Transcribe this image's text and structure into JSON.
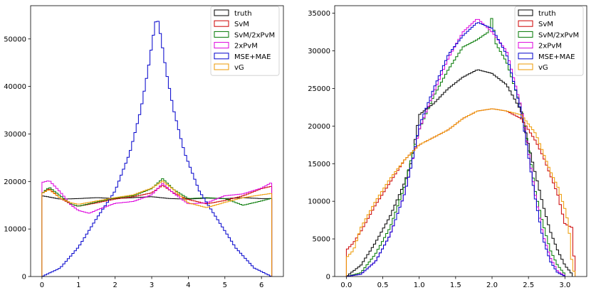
{
  "chart_data": [
    {
      "type": "histogram",
      "xlim": [
        -0.31,
        6.6
      ],
      "ylim": [
        0,
        57000
      ],
      "xticks": [
        0,
        1,
        2,
        3,
        4,
        5,
        6
      ],
      "yticks": [
        0,
        10000,
        20000,
        30000,
        40000,
        50000
      ],
      "grid": false,
      "legend_position": "top-right",
      "series": [
        {
          "name": "truth",
          "color": "#000000",
          "points": [
            [
              0,
              17000
            ],
            [
              0.5,
              16300
            ],
            [
              1,
              16400
            ],
            [
              1.5,
              16600
            ],
            [
              2,
              16400
            ],
            [
              2.5,
              16600
            ],
            [
              3,
              16800
            ],
            [
              3.5,
              16400
            ],
            [
              4,
              16300
            ],
            [
              4.5,
              16500
            ],
            [
              5,
              16400
            ],
            [
              5.5,
              16600
            ],
            [
              6,
              16400
            ],
            [
              6.28,
              16400
            ]
          ]
        },
        {
          "name": "SvM",
          "color": "#cc0000",
          "points": [
            [
              0,
              17500
            ],
            [
              0.2,
              18500
            ],
            [
              0.5,
              16500
            ],
            [
              0.8,
              15200
            ],
            [
              1,
              14800
            ],
            [
              1.5,
              15500
            ],
            [
              2,
              16300
            ],
            [
              2.5,
              16800
            ],
            [
              3,
              17600
            ],
            [
              3.3,
              19200
            ],
            [
              3.6,
              17600
            ],
            [
              4,
              16200
            ],
            [
              4.5,
              15300
            ],
            [
              5,
              16000
            ],
            [
              5.5,
              17000
            ],
            [
              6,
              18500
            ],
            [
              6.28,
              19000
            ]
          ]
        },
        {
          "name": "SvM/2xPvM",
          "color": "#007700",
          "points": [
            [
              0,
              17500
            ],
            [
              0.2,
              18800
            ],
            [
              0.5,
              17000
            ],
            [
              0.8,
              15200
            ],
            [
              1,
              14800
            ],
            [
              1.5,
              15700
            ],
            [
              2,
              16500
            ],
            [
              2.5,
              17000
            ],
            [
              3,
              18500
            ],
            [
              3.3,
              20600
            ],
            [
              3.6,
              18300
            ],
            [
              4,
              16400
            ],
            [
              4.5,
              16600
            ],
            [
              5,
              16400
            ],
            [
              5.5,
              15000
            ],
            [
              6,
              15900
            ],
            [
              6.28,
              16500
            ]
          ]
        },
        {
          "name": "2xPvM",
          "color": "#dd00dd",
          "points": [
            [
              0,
              19800
            ],
            [
              0.2,
              20200
            ],
            [
              0.5,
              17800
            ],
            [
              0.8,
              15000
            ],
            [
              1,
              13900
            ],
            [
              1.3,
              13300
            ],
            [
              1.5,
              14000
            ],
            [
              2,
              15400
            ],
            [
              2.5,
              15800
            ],
            [
              3,
              17200
            ],
            [
              3.3,
              19600
            ],
            [
              3.6,
              17500
            ],
            [
              4,
              15300
            ],
            [
              4.5,
              15500
            ],
            [
              5,
              17000
            ],
            [
              5.5,
              17400
            ],
            [
              6,
              18600
            ],
            [
              6.28,
              19800
            ]
          ]
        },
        {
          "name": "MSE+MAE",
          "color": "#0000cc",
          "points": [
            [
              0,
              0
            ],
            [
              0.5,
              1800
            ],
            [
              1,
              6200
            ],
            [
              1.5,
              12300
            ],
            [
              2,
              18000
            ],
            [
              2.4,
              26000
            ],
            [
              2.7,
              35000
            ],
            [
              2.9,
              43500
            ],
            [
              3.05,
              51000
            ],
            [
              3.14,
              55000
            ],
            [
              3.25,
              50500
            ],
            [
              3.4,
              43000
            ],
            [
              3.6,
              35000
            ],
            [
              3.9,
              26000
            ],
            [
              4.3,
              18000
            ],
            [
              4.8,
              12000
            ],
            [
              5.3,
              6000
            ],
            [
              5.8,
              1800
            ],
            [
              6.28,
              0
            ]
          ]
        },
        {
          "name": "vG",
          "color": "#ee9900",
          "points": [
            [
              0,
              17500
            ],
            [
              0.2,
              18300
            ],
            [
              0.5,
              16500
            ],
            [
              0.8,
              15500
            ],
            [
              1,
              15200
            ],
            [
              1.5,
              15900
            ],
            [
              2,
              16600
            ],
            [
              2.5,
              17200
            ],
            [
              3,
              18600
            ],
            [
              3.3,
              20100
            ],
            [
              3.6,
              18300
            ],
            [
              4,
              15500
            ],
            [
              4.5,
              14500
            ],
            [
              5,
              15600
            ],
            [
              5.5,
              16600
            ],
            [
              6,
              17200
            ],
            [
              6.28,
              17500
            ]
          ]
        }
      ]
    },
    {
      "type": "histogram",
      "xlim": [
        -0.16,
        3.3
      ],
      "ylim": [
        0,
        36000
      ],
      "xticks": [
        0.0,
        0.5,
        1.0,
        1.5,
        2.0,
        2.5,
        3.0
      ],
      "yticks": [
        0,
        5000,
        10000,
        15000,
        20000,
        25000,
        30000,
        35000
      ],
      "grid": false,
      "legend_position": "top-right",
      "series": [
        {
          "name": "truth",
          "color": "#000000",
          "points": [
            [
              0,
              0
            ],
            [
              0.2,
              1500
            ],
            [
              0.4,
              4500
            ],
            [
              0.6,
              8000
            ],
            [
              0.8,
              12500
            ],
            [
              0.9,
              15500
            ],
            [
              1.0,
              21500
            ],
            [
              1.2,
              23000
            ],
            [
              1.4,
              25000
            ],
            [
              1.6,
              26500
            ],
            [
              1.8,
              27500
            ],
            [
              2.0,
              27000
            ],
            [
              2.2,
              25500
            ],
            [
              2.4,
              22000
            ],
            [
              2.5,
              17500
            ],
            [
              2.6,
              13500
            ],
            [
              2.7,
              9500
            ],
            [
              2.8,
              6000
            ],
            [
              2.9,
              3500
            ],
            [
              3.0,
              1500
            ],
            [
              3.1,
              300
            ]
          ]
        },
        {
          "name": "SvM",
          "color": "#cc0000",
          "points": [
            [
              0,
              3500
            ],
            [
              0.1,
              4500
            ],
            [
              0.2,
              6000
            ],
            [
              0.4,
              9500
            ],
            [
              0.6,
              12500
            ],
            [
              0.8,
              15500
            ],
            [
              1.0,
              17500
            ],
            [
              1.2,
              18500
            ],
            [
              1.4,
              19500
            ],
            [
              1.6,
              21000
            ],
            [
              1.8,
              22000
            ],
            [
              2.0,
              22300
            ],
            [
              2.2,
              22000
            ],
            [
              2.4,
              21000
            ],
            [
              2.6,
              18000
            ],
            [
              2.7,
              16000
            ],
            [
              2.8,
              13500
            ],
            [
              2.9,
              11000
            ],
            [
              3.0,
              7000
            ],
            [
              3.1,
              6500
            ],
            [
              3.14,
              300
            ]
          ]
        },
        {
          "name": "SvM/2xPvM",
          "color": "#007700",
          "points": [
            [
              0,
              0
            ],
            [
              0.2,
              500
            ],
            [
              0.4,
              3000
            ],
            [
              0.6,
              6500
            ],
            [
              0.8,
              12000
            ],
            [
              0.9,
              16000
            ],
            [
              1.0,
              19500
            ],
            [
              1.2,
              24000
            ],
            [
              1.4,
              27500
            ],
            [
              1.6,
              30500
            ],
            [
              1.8,
              31500
            ],
            [
              1.95,
              32500
            ],
            [
              2.0,
              34500
            ],
            [
              2.05,
              31000
            ],
            [
              2.2,
              28500
            ],
            [
              2.4,
              22500
            ],
            [
              2.5,
              17000
            ],
            [
              2.6,
              11000
            ],
            [
              2.7,
              7000
            ],
            [
              2.8,
              3500
            ],
            [
              2.9,
              1500
            ],
            [
              3.0,
              300
            ]
          ]
        },
        {
          "name": "2xPvM",
          "color": "#dd00dd",
          "points": [
            [
              0,
              0
            ],
            [
              0.2,
              300
            ],
            [
              0.4,
              2000
            ],
            [
              0.6,
              5500
            ],
            [
              0.8,
              11000
            ],
            [
              0.9,
              15000
            ],
            [
              1.0,
              19500
            ],
            [
              1.2,
              24500
            ],
            [
              1.4,
              29000
            ],
            [
              1.6,
              32500
            ],
            [
              1.8,
              34300
            ],
            [
              2.0,
              32500
            ],
            [
              2.2,
              30000
            ],
            [
              2.4,
              22500
            ],
            [
              2.5,
              16500
            ],
            [
              2.6,
              10500
            ],
            [
              2.7,
              5500
            ],
            [
              2.8,
              2500
            ],
            [
              2.9,
              700
            ],
            [
              3.0,
              100
            ]
          ]
        },
        {
          "name": "MSE+MAE",
          "color": "#0000cc",
          "points": [
            [
              0,
              0
            ],
            [
              0.2,
              300
            ],
            [
              0.4,
              2000
            ],
            [
              0.6,
              5500
            ],
            [
              0.8,
              11000
            ],
            [
              0.9,
              15000
            ],
            [
              1.0,
              20000
            ],
            [
              1.2,
              25000
            ],
            [
              1.4,
              29500
            ],
            [
              1.6,
              32000
            ],
            [
              1.8,
              33800
            ],
            [
              2.0,
              33000
            ],
            [
              2.2,
              29500
            ],
            [
              2.4,
              22000
            ],
            [
              2.5,
              16000
            ],
            [
              2.6,
              10000
            ],
            [
              2.7,
              5000
            ],
            [
              2.8,
              2000
            ],
            [
              2.9,
              500
            ],
            [
              3.0,
              50
            ]
          ]
        },
        {
          "name": "vG",
          "color": "#ee9900",
          "points": [
            [
              0,
              2500
            ],
            [
              0.1,
              3500
            ],
            [
              0.2,
              6500
            ],
            [
              0.4,
              10000
            ],
            [
              0.6,
              13000
            ],
            [
              0.8,
              15500
            ],
            [
              1.0,
              17500
            ],
            [
              1.2,
              18500
            ],
            [
              1.4,
              19500
            ],
            [
              1.6,
              21000
            ],
            [
              1.8,
              22000
            ],
            [
              2.0,
              22300
            ],
            [
              2.2,
              22000
            ],
            [
              2.4,
              21500
            ],
            [
              2.6,
              19000
            ],
            [
              2.7,
              16500
            ],
            [
              2.8,
              14000
            ],
            [
              2.9,
              12000
            ],
            [
              3.0,
              9000
            ],
            [
              3.05,
              7000
            ],
            [
              3.1,
              1500
            ],
            [
              3.14,
              200
            ]
          ]
        }
      ]
    }
  ]
}
